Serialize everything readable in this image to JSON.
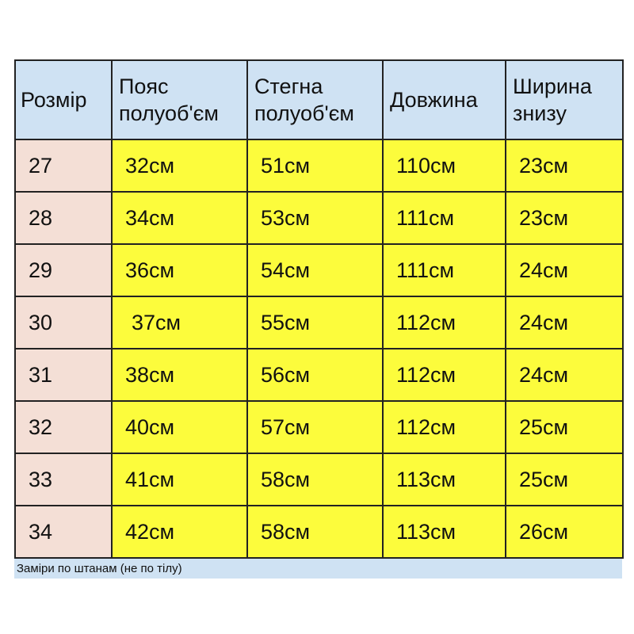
{
  "table": {
    "headers": [
      {
        "line1": "Розмір",
        "line2": ""
      },
      {
        "line1": "Пояс",
        "line2": "полуоб'єм"
      },
      {
        "line1": "Стегна",
        "line2": "полуоб'єм"
      },
      {
        "line1": "Довжина",
        "line2": ""
      },
      {
        "line1": "Ширина",
        "line2": "знизу"
      }
    ],
    "rows": [
      [
        "27",
        "32см",
        "51см",
        "110см",
        "23см"
      ],
      [
        "28",
        "34см",
        "53см",
        "111см",
        "23см"
      ],
      [
        "29",
        "36см",
        "54см",
        "111см",
        "24см"
      ],
      [
        "30",
        "37см",
        "55см",
        "112см",
        "24см"
      ],
      [
        "31",
        "38см",
        "56см",
        "112см",
        "24см"
      ],
      [
        "32",
        "40см",
        "57см",
        "112см",
        "25см"
      ],
      [
        "33",
        "41см",
        "58см",
        "113см",
        "25см"
      ],
      [
        "34",
        "42см",
        "58см",
        "113см",
        "26см"
      ]
    ]
  },
  "footer": "Заміри по штанам (не по тілу)",
  "colors": {
    "header": "#cfe2f3",
    "size_column": "#f4dfd6",
    "values": "#fcfc3c"
  }
}
